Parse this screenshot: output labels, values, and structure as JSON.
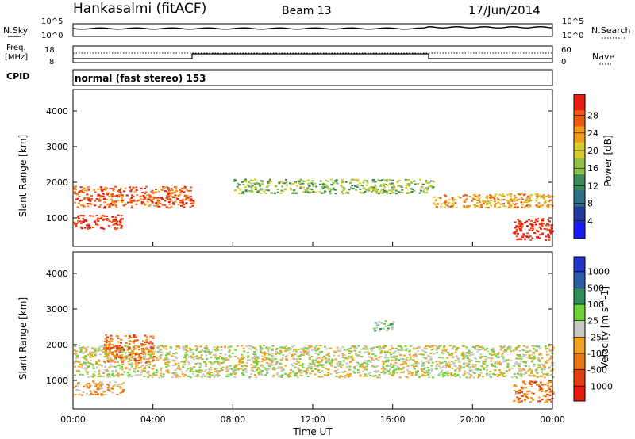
{
  "header": {
    "station": "Hankasalmi (fitACF)",
    "beam": "Beam 13",
    "date": "17/Jun/2014"
  },
  "top_panels": {
    "nsky_label": "N.Sky",
    "nsky_tick_top": "10^5",
    "nsky_tick_bottom": "10^0",
    "nsearch_label": "N.Search",
    "nsearch_tick_top": "10^5",
    "nsearch_tick_bottom": "10^0",
    "freq_label": "Freq.",
    "freq_unit": "[MHz]",
    "freq_tick_top": "18",
    "freq_tick_bottom": "8",
    "nave_label": "Nave",
    "nave_tick_top": "60",
    "nave_tick_bottom": "0",
    "cpid_label": "CPID",
    "cpid_text": "normal (fast stereo) 153"
  },
  "colors": {
    "power": [
      "#1a1aff",
      "#23399e",
      "#2e6f87",
      "#3a8a5a",
      "#8fc04a",
      "#d6cc2a",
      "#f29a1a",
      "#ee5a14",
      "#e81c10"
    ],
    "velocity": [
      "#2235c8",
      "#2a5fa8",
      "#2e8f5a",
      "#6bd23a",
      "#c8c8c2",
      "#f2a21c",
      "#ea7514",
      "#e53c12",
      "#e51c10"
    ]
  },
  "chart_data": [
    {
      "type": "heatmap",
      "title": "Power",
      "ylabel": "Slant Range [km]",
      "ylim": [
        200,
        4600
      ],
      "yticks": [
        "1000",
        "2000",
        "3000",
        "4000"
      ],
      "colorbar_label": "Power [dB]",
      "colorbar_ticks": [
        "4",
        "8",
        "12",
        "16",
        "20",
        "24",
        "28"
      ],
      "regions": [
        {
          "x": [
            0.0,
            6.0
          ],
          "y": [
            1300,
            1900
          ],
          "level": 7
        },
        {
          "x": [
            0.0,
            2.5
          ],
          "y": [
            700,
            1100
          ],
          "level": 8
        },
        {
          "x": [
            8.0,
            18.0
          ],
          "y": [
            1700,
            2100
          ],
          "level": 4
        },
        {
          "x": [
            18.0,
            24.0
          ],
          "y": [
            1300,
            1700
          ],
          "level": 6
        },
        {
          "x": [
            22.0,
            24.0
          ],
          "y": [
            400,
            1000
          ],
          "level": 8
        }
      ]
    },
    {
      "type": "heatmap",
      "title": "Velocity",
      "ylabel": "Slant Range [km]",
      "ylim": [
        200,
        4600
      ],
      "yticks": [
        "1000",
        "2000",
        "3000",
        "4000"
      ],
      "xlabel": "Time UT",
      "xticks": [
        "00:00",
        "04:00",
        "08:00",
        "12:00",
        "16:00",
        "20:00",
        "00:00"
      ],
      "colorbar_label": "Velocity [m s^-1]",
      "colorbar_ticks": [
        "1000",
        "500",
        "100",
        "25",
        "-25",
        "-100",
        "-500",
        "-1000"
      ],
      "regions": [
        {
          "x": [
            0.0,
            24.0
          ],
          "y": [
            1100,
            2000
          ],
          "level": 4
        },
        {
          "x": [
            1.5,
            4.0
          ],
          "y": [
            1500,
            2300
          ],
          "level": 6
        },
        {
          "x": [
            0.0,
            2.5
          ],
          "y": [
            600,
            1000
          ],
          "level": 5
        },
        {
          "x": [
            15.0,
            16.0
          ],
          "y": [
            2400,
            2700
          ],
          "level": 3
        },
        {
          "x": [
            22.0,
            24.0
          ],
          "y": [
            400,
            1000
          ],
          "level": 6
        }
      ]
    }
  ]
}
